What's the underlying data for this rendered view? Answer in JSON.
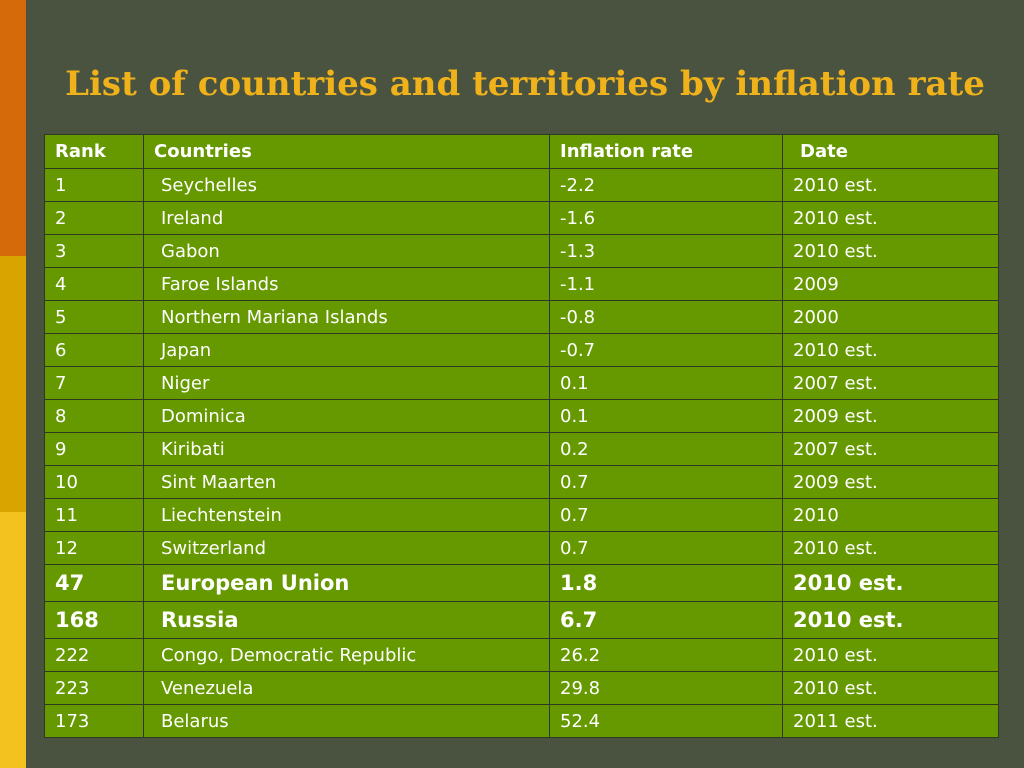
{
  "title": "List of countries and territories by inflation rate",
  "table": {
    "headers": [
      "Rank",
      "Countries",
      "Inflation rate",
      "Date"
    ],
    "rows": [
      {
        "rank": "1",
        "country": "Seychelles",
        "rate": "-2.2",
        "date": "2010 est."
      },
      {
        "rank": "2",
        "country": "Ireland",
        "rate": "-1.6",
        "date": "2010 est."
      },
      {
        "rank": "3",
        "country": "Gabon",
        "rate": "-1.3",
        "date": "2010 est."
      },
      {
        "rank": "4",
        "country": "Faroe Islands",
        "rate": "-1.1",
        "date": "2009"
      },
      {
        "rank": "5",
        "country": "Northern Mariana Islands",
        "rate": "-0.8",
        "date": "2000"
      },
      {
        "rank": "6",
        "country": "Japan",
        "rate": "-0.7",
        "date": "2010 est."
      },
      {
        "rank": "7",
        "country": "Niger",
        "rate": "0.1",
        "date": "2007 est."
      },
      {
        "rank": "8",
        "country": "Dominica",
        "rate": "0.1",
        "date": "2009 est."
      },
      {
        "rank": "9",
        "country": "Kiribati",
        "rate": "0.2",
        "date": "2007 est."
      },
      {
        "rank": "10",
        "country": "Sint Maarten",
        "rate": "0.7",
        "date": "2009 est."
      },
      {
        "rank": "11",
        "country": "Liechtenstein",
        "rate": "0.7",
        "date": "2010"
      },
      {
        "rank": "12",
        "country": "Switzerland",
        "rate": "0.7",
        "date": "2010 est."
      },
      {
        "rank": "47",
        "country": "European Union",
        "rate": "1.8",
        "date": "2010 est.",
        "bold": true
      },
      {
        "rank": "168",
        "country": "Russia",
        "rate": "6.7",
        "date": "2010 est.",
        "bold": true
      },
      {
        "rank": "222",
        "country": "Congo, Democratic Republic",
        "rate": "26.2",
        "date": "2010 est."
      },
      {
        "rank": "223",
        "country": "Venezuela",
        "rate": "29.8",
        "date": "2010 est."
      },
      {
        "rank": "173",
        "country": "Belarus",
        "rate": "52.4",
        "date": "2011 est."
      }
    ]
  }
}
